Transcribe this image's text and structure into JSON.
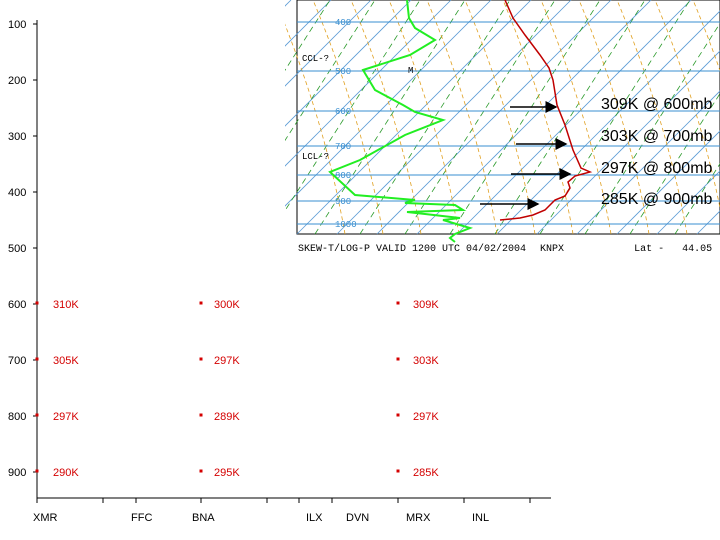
{
  "chart_data": {
    "type": "scatter",
    "title": "",
    "xlabel": "",
    "ylabel": "",
    "ylim": [
      100,
      950
    ],
    "y_ticks": [
      100,
      200,
      300,
      400,
      500,
      600,
      700,
      800,
      900
    ],
    "stations": [
      "XMR",
      "FFC",
      "BNA",
      "ILX",
      "DVN",
      "MRX",
      "INL"
    ],
    "points": [
      {
        "station": "XMR",
        "p": 600,
        "label": "310K"
      },
      {
        "station": "XMR",
        "p": 700,
        "label": "305K"
      },
      {
        "station": "XMR",
        "p": 800,
        "label": "297K"
      },
      {
        "station": "XMR",
        "p": 900,
        "label": "290K"
      },
      {
        "station": "BNA",
        "p": 600,
        "label": "300K"
      },
      {
        "station": "BNA",
        "p": 700,
        "label": "297K"
      },
      {
        "station": "BNA",
        "p": 800,
        "label": "289K"
      },
      {
        "station": "BNA",
        "p": 900,
        "label": "295K"
      },
      {
        "station": "MRX",
        "p": 600,
        "label": "309K"
      },
      {
        "station": "MRX",
        "p": 700,
        "label": "303K"
      },
      {
        "station": "MRX",
        "p": 800,
        "label": "297K"
      },
      {
        "station": "MRX",
        "p": 900,
        "label": "285K"
      }
    ],
    "point_color": "#d40000"
  },
  "skewt": {
    "caption": "SKEW-T/LOG-P VALID 1200 UTC 04/02/2004",
    "station": "KNPX",
    "lat_label": "Lat -",
    "lat_value": "44.05",
    "pressure_labels": [
      "400",
      "500",
      "600",
      "700",
      "800",
      "900",
      "1000"
    ],
    "ccl_label": "CCL-?",
    "lcl_label": "LCL-?",
    "m_label": "M",
    "annotations": [
      "309K @ 600mb",
      "303K @ 700mb",
      "297K @ 800mb",
      "285K @ 900mb"
    ],
    "colors": {
      "temperature": "#c00000",
      "dewpoint": "#22ee22",
      "isobar": "#3a8fd0",
      "isotherm": "#5b9bd5",
      "adiabat": "#e0a020",
      "mixing": "#2a9a2a"
    }
  }
}
